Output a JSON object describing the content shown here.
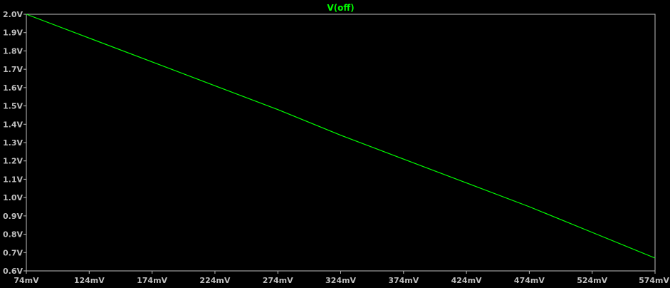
{
  "chart_data": {
    "type": "line",
    "title": "",
    "xlabel": "",
    "ylabel": "",
    "grid": false,
    "legend": "top-center",
    "xlim": [
      74,
      574
    ],
    "ylim": [
      0.6,
      2.0
    ],
    "x_ticks": [
      74,
      124,
      174,
      224,
      274,
      324,
      374,
      424,
      474,
      524,
      574
    ],
    "x_tick_labels": [
      "74mV",
      "124mV",
      "174mV",
      "224mV",
      "274mV",
      "324mV",
      "374mV",
      "424mV",
      "474mV",
      "524mV",
      "574mV"
    ],
    "y_ticks": [
      0.6,
      0.7,
      0.8,
      0.9,
      1.0,
      1.1,
      1.2,
      1.3,
      1.4,
      1.5,
      1.6,
      1.7,
      1.8,
      1.9,
      2.0
    ],
    "y_tick_labels": [
      "0.6V",
      "0.7V",
      "0.8V",
      "0.9V",
      "1.0V",
      "1.1V",
      "1.2V",
      "1.3V",
      "1.4V",
      "1.5V",
      "1.6V",
      "1.7V",
      "1.8V",
      "1.9V",
      "2.0V"
    ],
    "series": [
      {
        "name": "V(off)",
        "color": "#00ff00",
        "x": [
          74,
          124,
          174,
          224,
          274,
          324,
          374,
          424,
          474,
          524,
          574
        ],
        "values": [
          2.0,
          1.87,
          1.74,
          1.61,
          1.48,
          1.34,
          1.21,
          1.08,
          0.95,
          0.81,
          0.67
        ]
      }
    ]
  },
  "colors": {
    "background": "#000000",
    "axis": "#bfbfbf",
    "tick_text": "#bfbfbf",
    "trace": "#00ff00",
    "title": "#00ff00"
  }
}
